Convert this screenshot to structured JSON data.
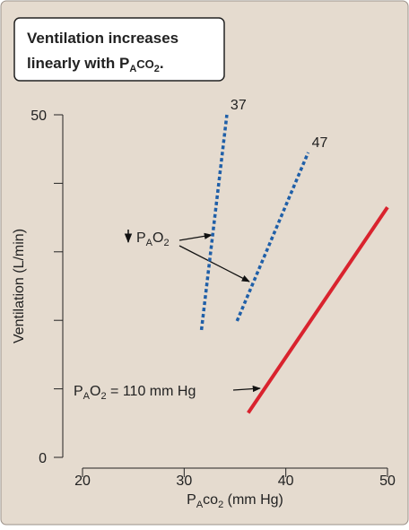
{
  "chart_data": {
    "type": "line",
    "title": {
      "line1": "Ventilation increases",
      "line2": [
        "linearly with P",
        "A",
        "CO",
        "2",
        "."
      ]
    },
    "xlabel": [
      "P",
      "A",
      "co",
      "2",
      " (mm Hg)"
    ],
    "ylabel": "Ventilation (L/min)",
    "xlim": [
      20,
      50
    ],
    "xticks": [
      20,
      30,
      40,
      50
    ],
    "ylim": [
      0,
      50
    ],
    "yticks": [
      0,
      50
    ],
    "y_minor_ticks": [
      10,
      20,
      30,
      40
    ],
    "series": [
      {
        "name": "37",
        "color": "#1f5fa8",
        "style": "dashed",
        "x": [
          31.7,
          34.2
        ],
        "values": [
          18.6,
          50
        ]
      },
      {
        "name": "47",
        "color": "#1f5fa8",
        "style": "dashed",
        "x": [
          35.2,
          42.2
        ],
        "values": [
          19.9,
          44.5
        ]
      },
      {
        "color": "#d9232e",
        "style": "solid",
        "x": [
          36.3,
          50
        ],
        "values": [
          6.5,
          36.5
        ]
      }
    ],
    "annotations": {
      "low_pao2": [
        "P",
        "A",
        "O",
        "2"
      ],
      "normal_pao2": [
        "P",
        "A",
        "O",
        "2",
        " = 110 mm Hg"
      ]
    }
  }
}
